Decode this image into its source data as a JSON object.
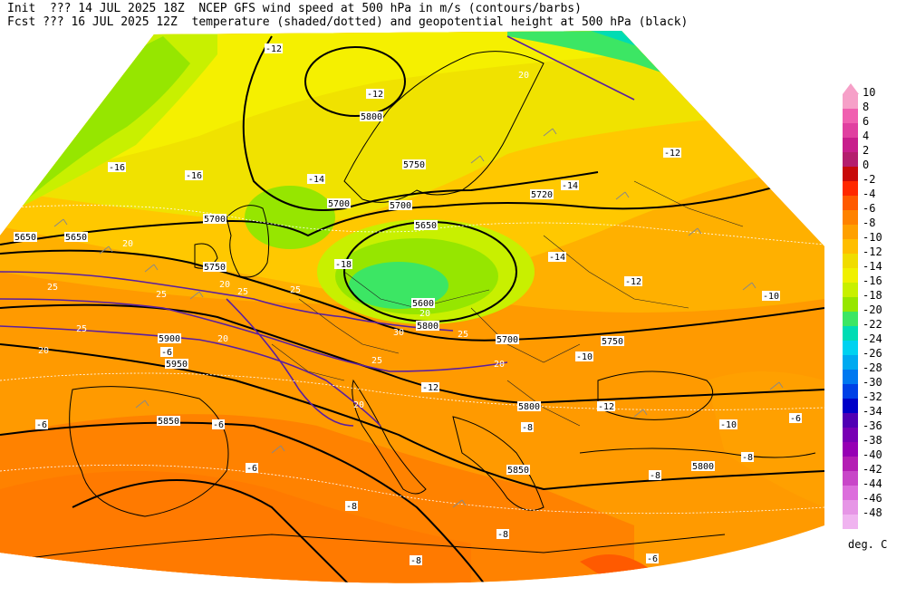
{
  "header": {
    "line1": "Init  ??? 14 JUL 2025 18Z  NCEP GFS wind speed at 500 hPa in m/s (contours/barbs)",
    "line2": "Fcst ??? 16 JUL 2025 12Z  temperature (shaded/dotted) and geopotential height at 500 hPa (black)"
  },
  "legend": {
    "units": "deg. C",
    "levels": [
      {
        "label": "10",
        "color": "#f6a0c8"
      },
      {
        "label": "8",
        "color": "#f060b0"
      },
      {
        "label": "6",
        "color": "#e040a0"
      },
      {
        "label": "4",
        "color": "#c81e8c"
      },
      {
        "label": "2",
        "color": "#b41e6e"
      },
      {
        "label": "0",
        "color": "#c80a0a"
      },
      {
        "label": "-2",
        "color": "#ff2800"
      },
      {
        "label": "-4",
        "color": "#ff5a00"
      },
      {
        "label": "-6",
        "color": "#ff8200"
      },
      {
        "label": "-8",
        "color": "#ffa000"
      },
      {
        "label": "-10",
        "color": "#ffbe00"
      },
      {
        "label": "-12",
        "color": "#f0dc00"
      },
      {
        "label": "-14",
        "color": "#f0f000"
      },
      {
        "label": "-16",
        "color": "#c8f000"
      },
      {
        "label": "-18",
        "color": "#96e600"
      },
      {
        "label": "-20",
        "color": "#3ce664"
      },
      {
        "label": "-22",
        "color": "#00dcb4"
      },
      {
        "label": "-24",
        "color": "#00d2f0"
      },
      {
        "label": "-26",
        "color": "#00aaf0"
      },
      {
        "label": "-28",
        "color": "#0078f0"
      },
      {
        "label": "-30",
        "color": "#0040e6"
      },
      {
        "label": "-32",
        "color": "#0000c8"
      },
      {
        "label": "-34",
        "color": "#5000b4"
      },
      {
        "label": "-36",
        "color": "#7800b4"
      },
      {
        "label": "-38",
        "color": "#9600b4"
      },
      {
        "label": "-40",
        "color": "#b41eb4"
      },
      {
        "label": "-42",
        "color": "#c846c8"
      },
      {
        "label": "-44",
        "color": "#dc6edc"
      },
      {
        "label": "-46",
        "color": "#e696e6"
      },
      {
        "label": "-48",
        "color": "#f0b4f0"
      }
    ]
  },
  "map": {
    "height_labels": [
      "5650",
      "5700",
      "5700",
      "5750",
      "5800",
      "5720",
      "5700",
      "5600",
      "5650",
      "5700",
      "5750",
      "5800",
      "5800",
      "5850",
      "5900",
      "5950",
      "5850",
      "5800",
      "5750",
      "5650"
    ],
    "temp_labels": [
      "-12",
      "-12",
      "-16",
      "-16",
      "-14",
      "-18",
      "-14",
      "-12",
      "-12",
      "-14",
      "-10",
      "-6",
      "-6",
      "-6",
      "-6",
      "-8",
      "-8",
      "-8",
      "-8",
      "-6",
      "-10",
      "-8",
      "-8",
      "-6",
      "-12",
      "-12",
      "-10"
    ],
    "wind_labels": [
      "20",
      "25",
      "25",
      "20",
      "25",
      "25",
      "20",
      "20",
      "25",
      "20",
      "25",
      "20",
      "25",
      "20",
      "30",
      "20"
    ]
  }
}
